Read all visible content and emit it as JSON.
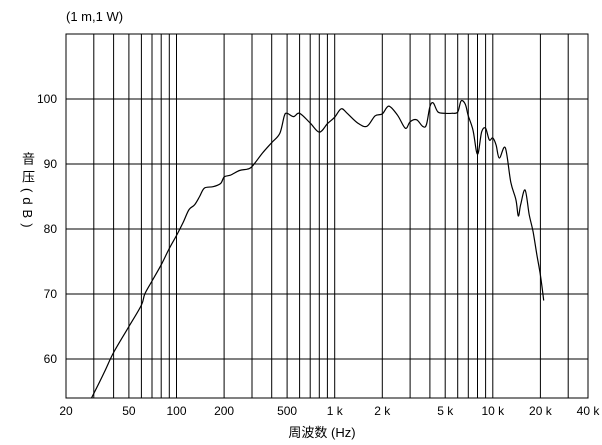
{
  "chart_data": {
    "type": "line",
    "annotation": "(1 m,1 W)",
    "xlabel": "周波数 (Hz)",
    "ylabel": "音压(dB)",
    "xscale": "log",
    "xlim": [
      20,
      40000
    ],
    "ylim": [
      54,
      110
    ],
    "grid": true,
    "xticks": [
      {
        "value": 20,
        "label": "20"
      },
      {
        "value": 50,
        "label": "50"
      },
      {
        "value": 100,
        "label": "100"
      },
      {
        "value": 200,
        "label": "200"
      },
      {
        "value": 500,
        "label": "500"
      },
      {
        "value": 1000,
        "label": "1 k"
      },
      {
        "value": 2000,
        "label": "2 k"
      },
      {
        "value": 5000,
        "label": "5 k"
      },
      {
        "value": 10000,
        "label": "10 k"
      },
      {
        "value": 20000,
        "label": "20 k"
      },
      {
        "value": 40000,
        "label": "40 k"
      }
    ],
    "yticks": [
      {
        "value": 60,
        "label": "60"
      },
      {
        "value": 70,
        "label": "70"
      },
      {
        "value": 80,
        "label": "80"
      },
      {
        "value": 90,
        "label": "90"
      },
      {
        "value": 100,
        "label": "100"
      }
    ],
    "series": [
      {
        "x": [
          29,
          35,
          40,
          50,
          60,
          63,
          70,
          80,
          90,
          100,
          110,
          120,
          130,
          140,
          150,
          170,
          190,
          200,
          220,
          250,
          280,
          300,
          350,
          400,
          450,
          480,
          500,
          550,
          600,
          700,
          800,
          900,
          1000,
          1100,
          1200,
          1400,
          1600,
          1800,
          2000,
          2200,
          2500,
          2800,
          3000,
          3300,
          3600,
          3800,
          4000,
          4200,
          4500,
          5000,
          5500,
          6000,
          6300,
          6700,
          7000,
          7500,
          8000,
          8500,
          9000,
          9500,
          10000,
          10500,
          11000,
          12000,
          13000,
          14000,
          14500,
          15000,
          16000,
          17000,
          18000,
          19000,
          20000,
          21000
        ],
        "y": [
          54,
          58,
          61,
          65,
          68.3,
          70,
          72,
          74.5,
          77,
          79,
          81,
          83,
          83.7,
          85,
          86.3,
          86.5,
          87,
          88,
          88.3,
          89,
          89.2,
          89.6,
          91.7,
          93.3,
          94.7,
          97.4,
          97.8,
          97.3,
          97.8,
          96.3,
          94.9,
          96.2,
          97.2,
          98.5,
          97.8,
          96.3,
          95.8,
          97.4,
          97.7,
          98.9,
          97.5,
          95.5,
          96.5,
          96.8,
          95.8,
          96.0,
          98.8,
          99.4,
          98.0,
          97.8,
          97.8,
          98.0,
          99.7,
          99.2,
          97.4,
          95.2,
          91.5,
          94.9,
          95.5,
          93.7,
          94.0,
          92.9,
          90.9,
          92.5,
          87.2,
          84.5,
          82.0,
          83.7,
          86.0,
          82.2,
          79.5,
          76.0,
          72.9,
          69.0
        ]
      }
    ]
  },
  "colors": {
    "line": "#000000",
    "grid": "#000000",
    "border": "#000000",
    "background": "#ffffff"
  }
}
